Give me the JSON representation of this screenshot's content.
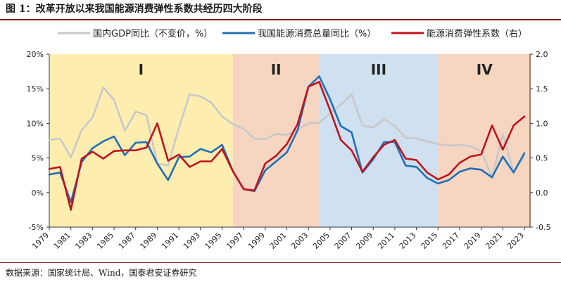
{
  "figure": {
    "title": "图 1：改革开放以来我国能源消费弹性系数共经历四大阶段",
    "source": "数据来源：国家统计局、Wind，国泰君安证券研究"
  },
  "chart_data": {
    "type": "line",
    "x": [
      1979,
      1980,
      1981,
      1982,
      1983,
      1984,
      1985,
      1986,
      1987,
      1988,
      1989,
      1990,
      1991,
      1992,
      1993,
      1994,
      1995,
      1996,
      1997,
      1998,
      1999,
      2000,
      2001,
      2002,
      2003,
      2004,
      2005,
      2006,
      2007,
      2008,
      2009,
      2010,
      2011,
      2012,
      2013,
      2014,
      2015,
      2016,
      2017,
      2018,
      2019,
      2020,
      2021,
      2022,
      2023
    ],
    "x_tick_labels": [
      "1979",
      "1981",
      "1983",
      "1985",
      "1987",
      "1989",
      "1991",
      "1993",
      "1995",
      "1997",
      "1999",
      "2001",
      "2003",
      "2005",
      "2007",
      "2009",
      "2011",
      "2013",
      "2015",
      "2017",
      "2019",
      "2021",
      "2023"
    ],
    "left_axis": {
      "ylim": [
        -5,
        20
      ],
      "ticks": [
        "-5%",
        "0%",
        "5%",
        "10%",
        "15%",
        "20%"
      ]
    },
    "right_axis": {
      "ylim": [
        -0.5,
        2.0
      ],
      "ticks": [
        "-0.5",
        "0.0",
        "0.5",
        "1.0",
        "1.5",
        "2.0"
      ]
    },
    "series": [
      {
        "name": "国内GDP同比（不变价，%）",
        "axis": "left",
        "color": "#c8c8c8",
        "values": [
          7.6,
          7.8,
          5.1,
          9.0,
          10.8,
          15.2,
          13.4,
          8.9,
          11.7,
          11.2,
          4.2,
          3.9,
          9.3,
          14.2,
          13.9,
          13.0,
          11.0,
          9.9,
          9.2,
          7.8,
          7.7,
          8.5,
          8.3,
          9.1,
          10.0,
          10.1,
          11.4,
          12.7,
          14.2,
          9.7,
          9.4,
          10.6,
          9.6,
          7.9,
          7.8,
          7.4,
          7.0,
          6.8,
          6.9,
          6.7,
          6.0,
          2.2,
          8.4,
          3.0,
          5.2
        ]
      },
      {
        "name": "我国能源消费总量同比（%）",
        "axis": "left",
        "color": "#1f6fb5",
        "values": [
          2.6,
          2.9,
          -1.4,
          4.4,
          6.4,
          7.4,
          8.1,
          5.4,
          7.2,
          7.3,
          4.2,
          1.8,
          5.1,
          5.2,
          6.3,
          5.8,
          6.9,
          3.1,
          0.5,
          0.2,
          3.2,
          4.5,
          5.8,
          9.0,
          15.3,
          16.8,
          13.5,
          9.6,
          8.7,
          2.9,
          4.8,
          7.3,
          7.3,
          3.9,
          3.7,
          2.1,
          1.3,
          1.8,
          3.0,
          3.5,
          3.3,
          2.2,
          5.2,
          2.9,
          5.7
        ]
      },
      {
        "name": "能源消费弹性系数（右）",
        "axis": "right",
        "color": "#c1121f",
        "values": [
          0.34,
          0.37,
          -0.25,
          0.49,
          0.59,
          0.49,
          0.6,
          0.61,
          0.61,
          0.65,
          1.0,
          0.46,
          0.55,
          0.37,
          0.45,
          0.45,
          0.63,
          0.31,
          0.05,
          0.03,
          0.42,
          0.53,
          0.7,
          0.99,
          1.53,
          1.6,
          1.19,
          0.76,
          0.61,
          0.3,
          0.51,
          0.69,
          0.76,
          0.49,
          0.47,
          0.29,
          0.19,
          0.26,
          0.43,
          0.52,
          0.55,
          0.97,
          0.62,
          0.97,
          1.1
        ]
      }
    ],
    "phases": [
      {
        "label": "I",
        "start": 1979,
        "end": 1996,
        "color": "#fdeeb0"
      },
      {
        "label": "II",
        "start": 1996,
        "end": 2004,
        "color": "#f6d6c0"
      },
      {
        "label": "III",
        "start": 2004,
        "end": 2015,
        "color": "#cfe0f0"
      },
      {
        "label": "IV",
        "start": 2015,
        "end": 2023,
        "color": "#f6d6c0"
      }
    ],
    "legend_position": "top"
  }
}
